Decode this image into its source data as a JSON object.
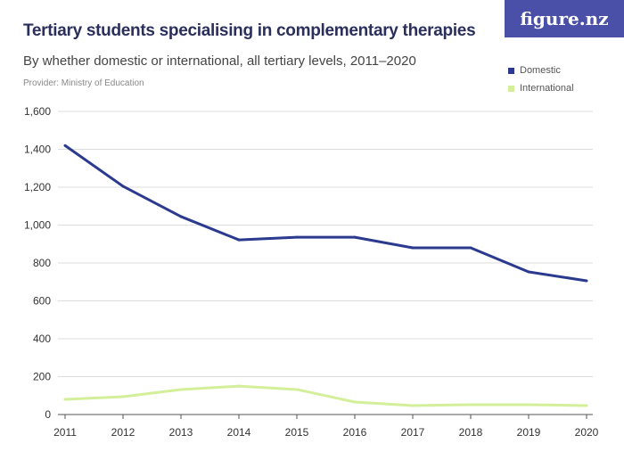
{
  "logo_text": "figure.nz",
  "chart_data": {
    "type": "line",
    "title": "Tertiary students specialising in complementary therapies",
    "subtitle": "By whether domestic or international, all tertiary levels, 2011–2020",
    "provider": "Provider: Ministry of Education",
    "xlabel": "",
    "ylabel": "",
    "x": [
      "2011",
      "2012",
      "2013",
      "2014",
      "2015",
      "2016",
      "2017",
      "2018",
      "2019",
      "2020"
    ],
    "ylim": [
      0,
      1600
    ],
    "yticks": [
      "0",
      "200",
      "400",
      "600",
      "800",
      "1,000",
      "1,200",
      "1,400",
      "1,600"
    ],
    "grid": true,
    "legend_position": "top-right",
    "series": [
      {
        "name": "Domestic",
        "color": "#2b3a8f",
        "values": [
          1420,
          1205,
          1045,
          922,
          936,
          936,
          880,
          880,
          753,
          706
        ]
      },
      {
        "name": "International",
        "color": "#d4ef9a",
        "values": [
          80,
          94,
          132,
          150,
          132,
          66,
          47,
          52,
          52,
          47
        ]
      }
    ]
  }
}
